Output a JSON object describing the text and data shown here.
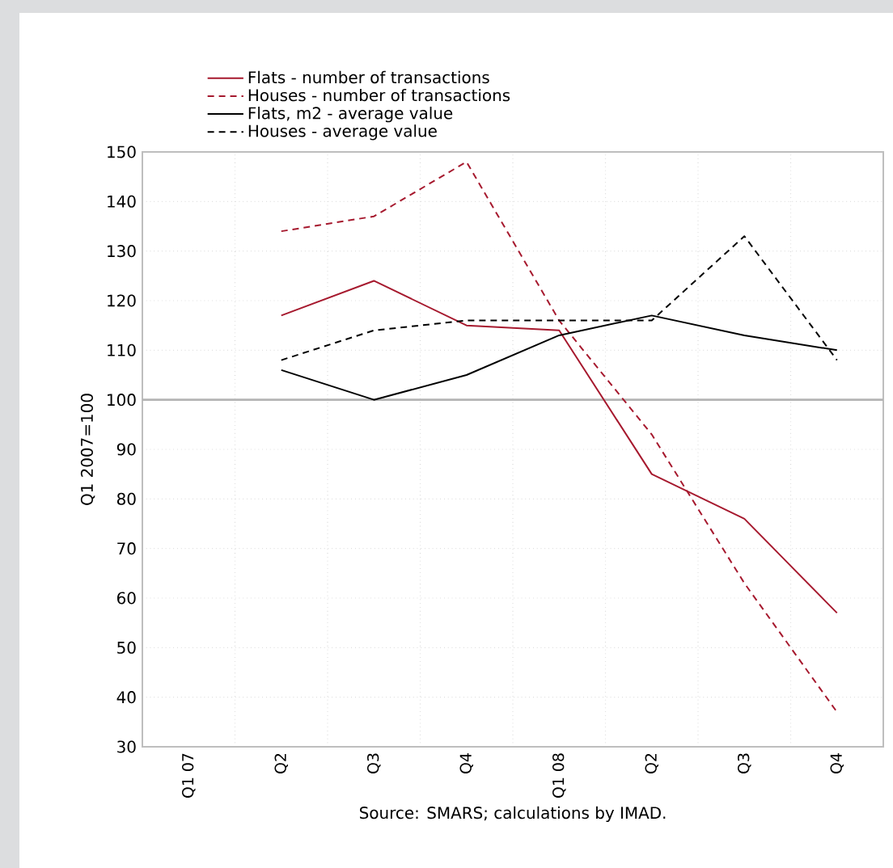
{
  "chart_data": {
    "type": "line",
    "ylabel": "Q1 2007=100",
    "categories": [
      "Q1 07",
      "Q2",
      "Q3",
      "Q4",
      "Q1 08",
      "Q2",
      "Q3",
      "Q4"
    ],
    "series": [
      {
        "name": "Flats - number of transactions",
        "color": "#a6192e",
        "line_style": "solid",
        "values": [
          null,
          117,
          124,
          115,
          114,
          85,
          76,
          57
        ]
      },
      {
        "name": "Houses - number of transactions",
        "color": "#a6192e",
        "line_style": "dashed",
        "values": [
          null,
          134,
          137,
          148,
          116,
          93,
          63,
          37
        ]
      },
      {
        "name": "Flats, m2 - average value",
        "color": "#000000",
        "line_style": "solid",
        "values": [
          null,
          106,
          100,
          105,
          113,
          117,
          113,
          110
        ]
      },
      {
        "name": "Houses - average value",
        "color": "#000000",
        "line_style": "dashed",
        "values": [
          null,
          108,
          114,
          116,
          116,
          116,
          133,
          108
        ]
      }
    ],
    "ylim": [
      30,
      150
    ],
    "yticks": [
      30,
      40,
      50,
      60,
      70,
      80,
      90,
      100,
      110,
      120,
      130,
      140,
      150
    ],
    "grid": true,
    "legend": "top",
    "ref_lines": [
      {
        "axis": "y",
        "value": 100,
        "color": "#b4b4b4"
      }
    ],
    "annotations": [
      "Source: SMARS; calculations by IMAD."
    ]
  }
}
